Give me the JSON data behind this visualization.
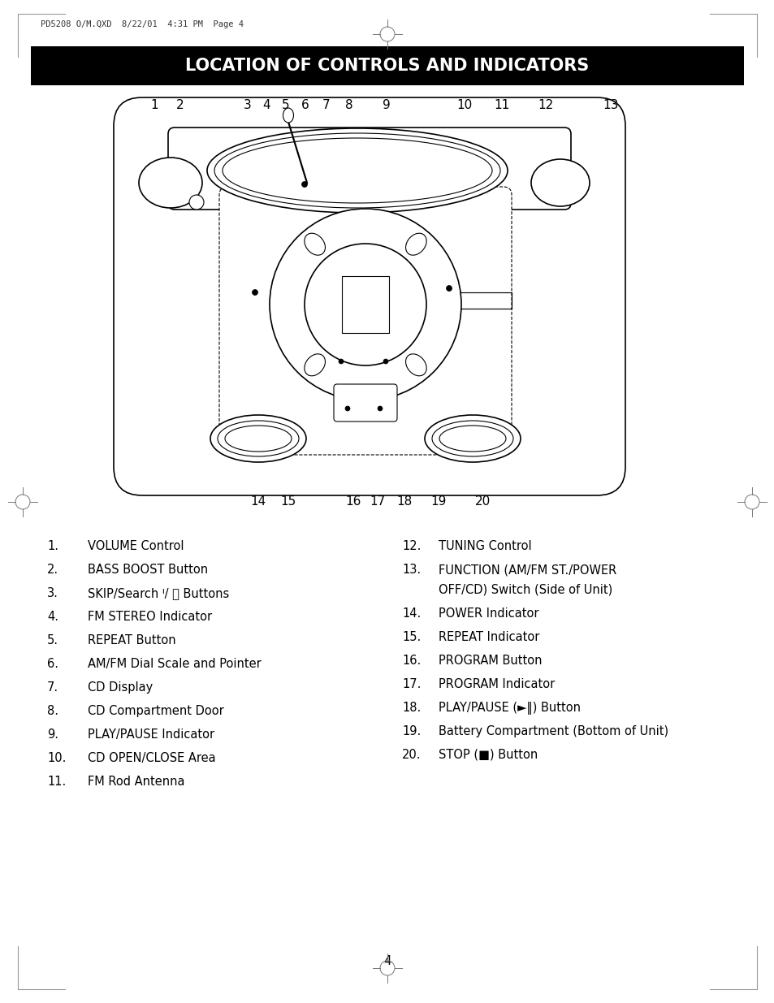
{
  "title": "LOCATION OF CONTROLS AND INDICATORS",
  "title_bg": "#000000",
  "title_color": "#ffffff",
  "header_text": "PD5208 O/M.QXD  8/22/01  4:31 PM  Page 4",
  "page_number": "4",
  "left_items": [
    [
      "1.",
      "VOLUME Control"
    ],
    [
      "2.",
      "BASS BOOST Button"
    ],
    [
      "3.",
      "SKIP/Search ᑊ/ ᑋ Buttons"
    ],
    [
      "4.",
      "FM STEREO Indicator"
    ],
    [
      "5.",
      "REPEAT Button"
    ],
    [
      "6.",
      "AM/FM Dial Scale and Pointer"
    ],
    [
      "7.",
      "CD Display"
    ],
    [
      "8.",
      "CD Compartment Door"
    ],
    [
      "9.",
      "PLAY/PAUSE Indicator"
    ],
    [
      "10.",
      "CD OPEN/CLOSE Area"
    ],
    [
      "11.",
      "FM Rod Antenna"
    ]
  ],
  "right_items": [
    [
      "12.",
      "TUNING Control"
    ],
    [
      "13.",
      "FUNCTION (AM/FM ST./POWER",
      "OFF/CD) Switch (Side of Unit)"
    ],
    [
      "14.",
      "POWER Indicator"
    ],
    [
      "15.",
      "REPEAT Indicator"
    ],
    [
      "16.",
      "PROGRAM Button"
    ],
    [
      "17.",
      "PROGRAM Indicator"
    ],
    [
      "18.",
      "PLAY/PAUSE (►‖) Button"
    ],
    [
      "19.",
      "Battery Compartment (Bottom of Unit)"
    ],
    [
      "20.",
      "STOP (■) Button"
    ]
  ],
  "bg_color": "#ffffff"
}
